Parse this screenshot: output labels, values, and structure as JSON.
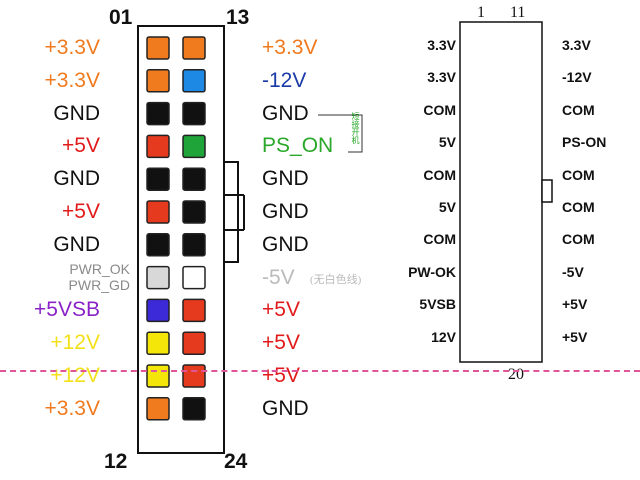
{
  "large_connector": {
    "pin_label_top_left": "01",
    "pin_label_top_right": "13",
    "pin_label_bottom_left": "12",
    "pin_label_bottom_right": "24",
    "rows": [
      {
        "left": "+3.3V",
        "left_color": "#f07a1e",
        "right": "+3.3V",
        "right_color": "#f07a1e",
        "pin_left": "#f07a1e",
        "pin_right": "#f07a1e"
      },
      {
        "left": "+3.3V",
        "left_color": "#f07a1e",
        "right": "-12V",
        "right_color": "#1a3aa8",
        "pin_left": "#f07a1e",
        "pin_right": "#1e88e5"
      },
      {
        "left": "GND",
        "left_color": "#111111",
        "right": "GND",
        "right_color": "#111111",
        "pin_left": "#111111",
        "pin_right": "#111111"
      },
      {
        "left": "+5V",
        "left_color": "#e11b1b",
        "right": "PS_ON",
        "right_color": "#2aa82a",
        "pin_left": "#e63a1e",
        "pin_right": "#1fa43a"
      },
      {
        "left": "GND",
        "left_color": "#111111",
        "right": "GND",
        "right_color": "#111111",
        "pin_left": "#111111",
        "pin_right": "#111111"
      },
      {
        "left": "+5V",
        "left_color": "#e11b1b",
        "right": "GND",
        "right_color": "#111111",
        "pin_left": "#e63a1e",
        "pin_right": "#111111"
      },
      {
        "left": "GND",
        "left_color": "#111111",
        "right": "GND",
        "right_color": "#111111",
        "pin_left": "#111111",
        "pin_right": "#111111"
      },
      {
        "left": "PWR_OK",
        "left2": "PWR_GD",
        "left_color": "#8a8a8a",
        "right": "-5V",
        "right_note": "(无白色线)",
        "right_color": "#bbbbbb",
        "pin_left": "#d8d8d8",
        "pin_right": "#ffffff"
      },
      {
        "left": "+5VSB",
        "left_color": "#8a22c8",
        "right": "+5V",
        "right_color": "#e11b1b",
        "pin_left": "#3c2ad8",
        "pin_right": "#e63a1e"
      },
      {
        "left": "+12V",
        "left_color": "#f2e11a",
        "right": "+5V",
        "right_color": "#e11b1b",
        "pin_left": "#f5e60a",
        "pin_right": "#e63a1e"
      },
      {
        "left": "+12V",
        "left_color": "#f2e11a",
        "right": "+5V",
        "right_color": "#e11b1b",
        "pin_left": "#f5e60a",
        "pin_right": "#e63a1e"
      },
      {
        "left": "+3.3V",
        "left_color": "#f07a1e",
        "right": "GND",
        "right_color": "#111111",
        "pin_left": "#f07a1e",
        "pin_right": "#111111"
      }
    ],
    "ps_on_note": "短接开机"
  },
  "small_connector": {
    "pin_label_top_left": "1",
    "pin_label_top_right": "11",
    "pin_label_bottom": "20",
    "rows": [
      {
        "left": "3.3V",
        "right": "3.3V",
        "pin_left": "#f07a1e",
        "pin_right": "#f07a1e"
      },
      {
        "left": "3.3V",
        "right": "-12V",
        "pin_left": "#f07a1e",
        "pin_right": "#1e88e5"
      },
      {
        "left": "COM",
        "right": "COM",
        "pin_left": "#111111",
        "pin_right": "#111111"
      },
      {
        "left": "5V",
        "right": "PS-ON",
        "pin_left": "#e63a1e",
        "pin_right": "#1fa43a"
      },
      {
        "left": "COM",
        "right": "COM",
        "pin_left": "#111111",
        "pin_right": "#111111"
      },
      {
        "left": "5V",
        "right": "COM",
        "pin_left": "#e63a1e",
        "pin_right": "#111111"
      },
      {
        "left": "COM",
        "right": "COM",
        "pin_left": "#111111",
        "pin_right": "#111111"
      },
      {
        "left": "PW-OK",
        "right": "-5V",
        "pin_left": "#d8d8d8",
        "pin_right": "#ffffff"
      },
      {
        "left": "5VSB",
        "right": "+5V",
        "pin_left": "#3c2ad8",
        "pin_right": "#e63a1e"
      },
      {
        "left": "12V",
        "right": "+5V",
        "pin_left": "#f5e60a",
        "pin_right": "#e63a1e"
      }
    ]
  }
}
